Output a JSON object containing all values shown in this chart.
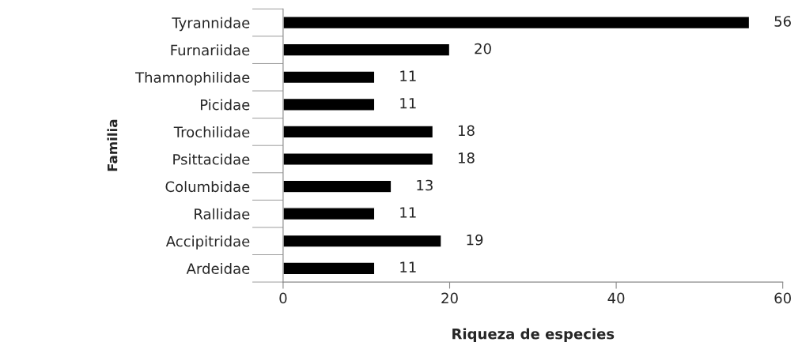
{
  "chart_data": {
    "type": "bar",
    "orientation": "horizontal",
    "xlabel": "Riqueza de especies",
    "ylabel": "Familia",
    "categories": [
      "Tyrannidae",
      "Furnariidae",
      "Thamnophilidae",
      "Picidae",
      "Trochilidae",
      "Psittacidae",
      "Columbidae",
      "Rallidae",
      "Accipitridae",
      "Ardeidae"
    ],
    "values": [
      56,
      20,
      11,
      11,
      18,
      18,
      13,
      11,
      19,
      11
    ],
    "color": "#000000",
    "xlim": [
      0,
      60
    ],
    "xticks": [
      0,
      20,
      40,
      60
    ],
    "data_labels": true,
    "grid": false
  }
}
